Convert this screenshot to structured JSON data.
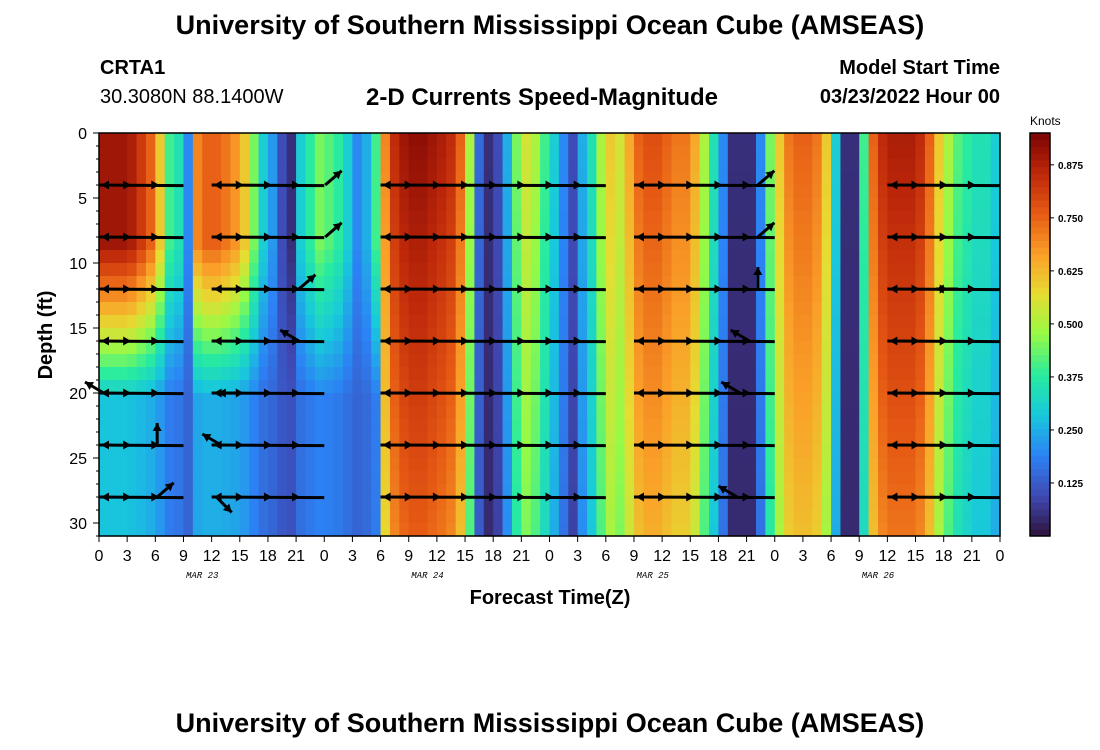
{
  "page": {
    "title": "University of Southern Mississippi Ocean Cube (AMSEAS)",
    "bottom_title": "University of Southern Mississippi Ocean Cube (AMSEAS)",
    "station_id": "CRTA1",
    "station_coords": "30.3080N  88.1400W",
    "subtitle": "2-D Currents Speed-Magnitude",
    "model_start_label": "Model Start Time",
    "model_start_value": "03/23/2022 Hour 00"
  },
  "chart_data": {
    "type": "heatmap",
    "title": "2-D Currents Speed-Magnitude",
    "xlabel": "Forecast Time(Z)",
    "ylabel": "Depth (ft)",
    "x_range_hours": [
      0,
      96
    ],
    "ylim": [
      0,
      31
    ],
    "y_ticks": [
      0,
      5,
      10,
      15,
      20,
      25,
      30
    ],
    "x_tick_labels": [
      "0",
      "3",
      "6",
      "9",
      "12",
      "15",
      "18",
      "21",
      "0",
      "3",
      "6",
      "9",
      "12",
      "15",
      "18",
      "21",
      "0",
      "3",
      "6",
      "9",
      "12",
      "15",
      "18",
      "21",
      "0",
      "3",
      "6",
      "9",
      "12",
      "15",
      "18",
      "21",
      "0"
    ],
    "date_labels": [
      {
        "label": "MAR 23",
        "hour": 11
      },
      {
        "label": "MAR 24",
        "hour": 35
      },
      {
        "label": "MAR 25",
        "hour": 59
      },
      {
        "label": "MAR 26",
        "hour": 83
      }
    ],
    "colorbar": {
      "label": "Knots",
      "min": 0,
      "max": 0.95,
      "ticks": [
        "0.875",
        "0.750",
        "0.625",
        "0.500",
        "0.375",
        "0.250",
        "0.125"
      ],
      "tick_values": [
        0.875,
        0.75,
        0.625,
        0.5,
        0.375,
        0.25,
        0.125
      ]
    },
    "speed_profile_hours": [
      0,
      1,
      2,
      3,
      4,
      5,
      6,
      7,
      8,
      9,
      10,
      11,
      12,
      13,
      14,
      15,
      16,
      17,
      18,
      19,
      20,
      21,
      22,
      23,
      24,
      25,
      26,
      27,
      28,
      29,
      30,
      31,
      32,
      33,
      34,
      35,
      36,
      37,
      38,
      39,
      40,
      41,
      42,
      43,
      44,
      45,
      46,
      47,
      48,
      49,
      50,
      51,
      52,
      53,
      54,
      55,
      56,
      57,
      58,
      59,
      60,
      61,
      62,
      63,
      64,
      65,
      66,
      67,
      68,
      69,
      70,
      71,
      72,
      73,
      74,
      75,
      76,
      77,
      78,
      79,
      80,
      81,
      82,
      83,
      84,
      85,
      86,
      87,
      88,
      89,
      90,
      91,
      92,
      93,
      94,
      95,
      96
    ],
    "speed_profile_knots": [
      0.9,
      0.9,
      0.9,
      0.88,
      0.82,
      0.75,
      0.6,
      0.4,
      0.35,
      0.2,
      0.7,
      0.75,
      0.75,
      0.72,
      0.68,
      0.6,
      0.45,
      0.3,
      0.22,
      0.1,
      0.05,
      0.3,
      0.38,
      0.45,
      0.42,
      0.38,
      0.3,
      0.2,
      0.25,
      0.4,
      0.7,
      0.85,
      0.9,
      0.92,
      0.92,
      0.9,
      0.88,
      0.85,
      0.75,
      0.5,
      0.15,
      0.05,
      0.1,
      0.25,
      0.45,
      0.55,
      0.5,
      0.4,
      0.3,
      0.2,
      0.1,
      0.25,
      0.35,
      0.5,
      0.6,
      0.55,
      0.65,
      0.75,
      0.78,
      0.78,
      0.75,
      0.72,
      0.72,
      0.65,
      0.5,
      0.35,
      0.2,
      0.05,
      0.05,
      0.05,
      0.2,
      0.45,
      0.6,
      0.72,
      0.75,
      0.75,
      0.72,
      0.6,
      0.3,
      0.05,
      0.05,
      0.4,
      0.75,
      0.85,
      0.88,
      0.88,
      0.88,
      0.85,
      0.75,
      0.6,
      0.5,
      0.42,
      0.38,
      0.35,
      0.35,
      0.3,
      0.3
    ],
    "vector_depths_ft": [
      4,
      8,
      12,
      16,
      20,
      24,
      28
    ],
    "vector_rows": [
      {
        "depth": 4,
        "segments": [
          [
            0,
            9
          ],
          [
            12,
            24
          ],
          [
            30,
            54
          ],
          [
            57,
            72
          ],
          [
            84,
            96
          ]
        ],
        "outlier": [
          [
            24.1,
            "NE"
          ],
          [
            70.2,
            "NE"
          ]
        ]
      },
      {
        "depth": 8,
        "segments": [
          [
            0,
            9
          ],
          [
            12,
            24
          ],
          [
            30,
            54
          ],
          [
            57,
            72
          ],
          [
            84,
            96
          ]
        ],
        "outlier": [
          [
            24.1,
            "NE"
          ],
          [
            70.2,
            "NE"
          ]
        ]
      },
      {
        "depth": 12,
        "segments": [
          [
            0,
            9
          ],
          [
            12,
            24
          ],
          [
            30,
            54
          ],
          [
            57,
            72
          ],
          [
            84,
            96
          ]
        ],
        "outlier": [
          [
            21.3,
            "NE"
          ],
          [
            70.2,
            "N"
          ],
          [
            91.5,
            "W"
          ]
        ]
      },
      {
        "depth": 16,
        "segments": [
          [
            0,
            9
          ],
          [
            12,
            24
          ],
          [
            30,
            54
          ],
          [
            57,
            72
          ],
          [
            84,
            96
          ]
        ],
        "outlier": [
          [
            21.3,
            "NW"
          ],
          [
            69.3,
            "NW"
          ]
        ]
      },
      {
        "depth": 20,
        "segments": [
          [
            0,
            9
          ],
          [
            12,
            24
          ],
          [
            30,
            54
          ],
          [
            57,
            72
          ],
          [
            84,
            96
          ]
        ],
        "outlier": [
          [
            0.5,
            "NW"
          ],
          [
            15.0,
            "W"
          ],
          [
            68.3,
            "NW"
          ]
        ]
      },
      {
        "depth": 24,
        "segments": [
          [
            0,
            9
          ],
          [
            12,
            24
          ],
          [
            30,
            54
          ],
          [
            57,
            72
          ],
          [
            84,
            96
          ]
        ],
        "outlier": [
          [
            6.2,
            "N"
          ],
          [
            13.0,
            "NW"
          ]
        ]
      },
      {
        "depth": 28,
        "segments": [
          [
            0,
            9
          ],
          [
            12,
            24
          ],
          [
            30,
            54
          ],
          [
            57,
            72
          ],
          [
            84,
            96
          ]
        ],
        "outlier": [
          [
            6.2,
            "NE"
          ],
          [
            12.5,
            "SE"
          ],
          [
            68.0,
            "NW"
          ]
        ]
      }
    ]
  }
}
